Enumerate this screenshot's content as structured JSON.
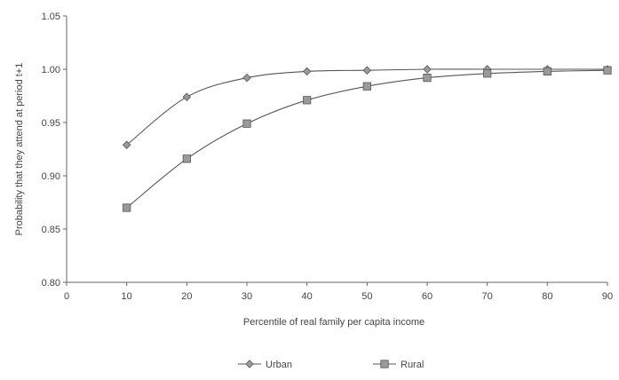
{
  "chart_data": {
    "type": "line",
    "title": "",
    "xlabel": "Percentile of real family per capita income",
    "ylabel": "Probability that they attend at period t+1",
    "xlim": [
      0,
      90
    ],
    "ylim": [
      0.8,
      1.05
    ],
    "x_ticks": [
      0,
      10,
      20,
      30,
      40,
      50,
      60,
      70,
      80,
      90
    ],
    "y_ticks": [
      0.8,
      0.85,
      0.9,
      0.95,
      1.0,
      1.05
    ],
    "x_tick_labels": [
      "0",
      "10",
      "20",
      "30",
      "40",
      "50",
      "60",
      "70",
      "80",
      "90"
    ],
    "y_tick_labels": [
      "0.80",
      "0.85",
      "0.90",
      "0.95",
      "1.00",
      "1.05"
    ],
    "grid": false,
    "legend_position": "bottom",
    "x": [
      10,
      20,
      30,
      40,
      50,
      60,
      70,
      80,
      90
    ],
    "series": [
      {
        "name": "Urban",
        "marker": "diamond",
        "color": "#888888",
        "values": [
          0.929,
          0.974,
          0.992,
          0.998,
          0.999,
          1.0,
          1.0,
          1.0,
          1.0
        ]
      },
      {
        "name": "Rural",
        "marker": "square",
        "color": "#888888",
        "values": [
          0.87,
          0.916,
          0.949,
          0.971,
          0.984,
          0.992,
          0.996,
          0.998,
          0.999
        ]
      }
    ]
  }
}
